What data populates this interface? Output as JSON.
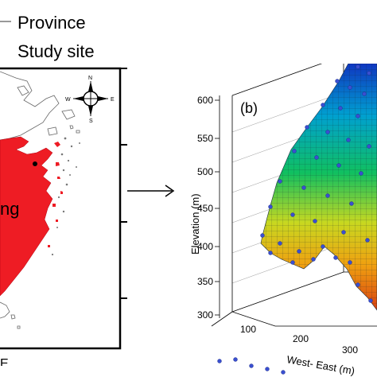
{
  "legend": {
    "province_label": "Province",
    "study_site_label": "Study site",
    "province_line_color": "#555555"
  },
  "map": {
    "region_partial_label": "ng",
    "land_color": "#ee1c24",
    "compass": {
      "n": "N",
      "s": "S",
      "e": "E",
      "w": "W"
    },
    "bottom_partial_label": "E"
  },
  "panel_b": {
    "label": "(b)",
    "z_axis_title": "Elevation (m)",
    "x_axis_title": "West- East (m)",
    "z_ticks": [
      "300",
      "350",
      "400",
      "450",
      "500",
      "550",
      "600"
    ],
    "x_ticks": [
      "100",
      "200",
      "300"
    ],
    "surface_colors": [
      "#1030c0",
      "#00a0d0",
      "#10c060",
      "#c8d820",
      "#f0a010",
      "#d84010"
    ],
    "point_color": "#3a4fd0"
  }
}
